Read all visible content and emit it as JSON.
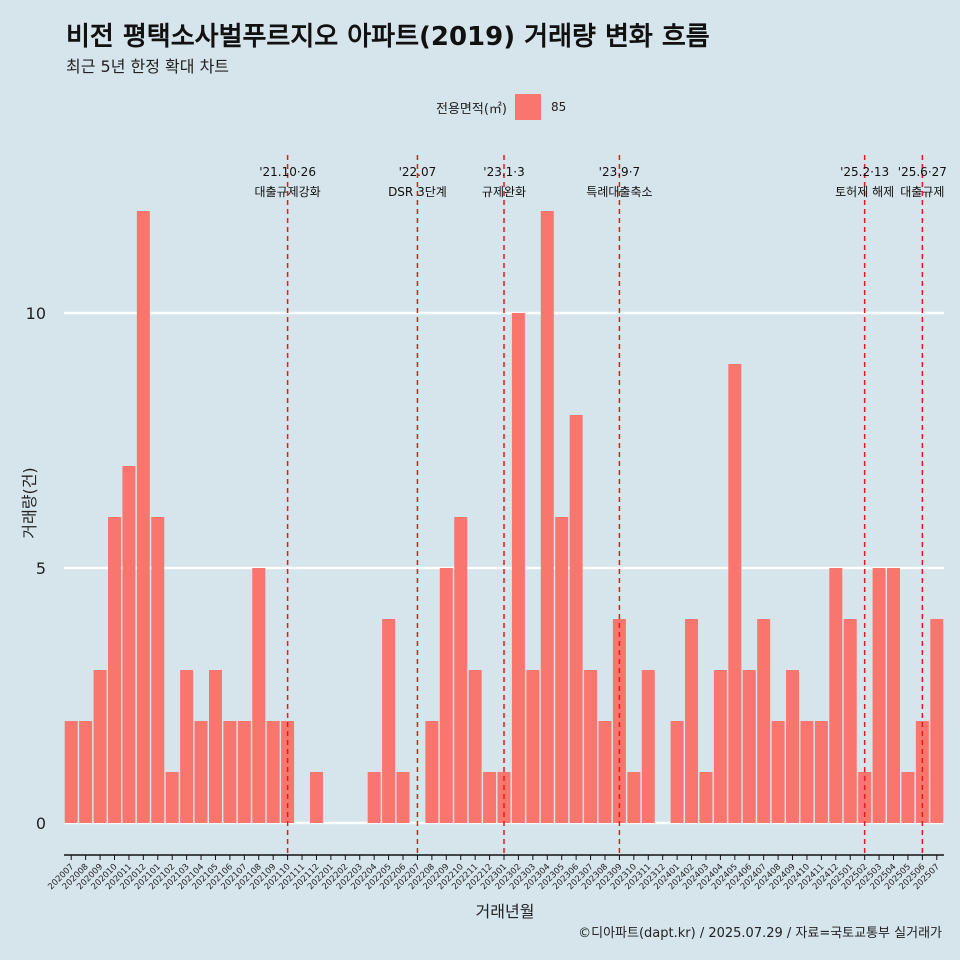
{
  "chart_data": {
    "type": "bar",
    "title": "비전 평택소사벌푸르지오 아파트(2019) 거래량 변화 흐름",
    "subtitle": "최근 5년 한정 확대 차트",
    "xlabel": "거래년월",
    "ylabel": "거래량(건)",
    "ylim": [
      0,
      12
    ],
    "yticks": [
      0,
      5,
      10
    ],
    "grid": true,
    "legend": {
      "title": "전용면적(㎡)",
      "position": "top"
    },
    "categories": [
      "202007",
      "202008",
      "202009",
      "202010",
      "202011",
      "202012",
      "202101",
      "202102",
      "202103",
      "202104",
      "202105",
      "202106",
      "202107",
      "202108",
      "202109",
      "202110",
      "202111",
      "202112",
      "202201",
      "202202",
      "202203",
      "202204",
      "202205",
      "202206",
      "202207",
      "202208",
      "202209",
      "202210",
      "202211",
      "202212",
      "202301",
      "202302",
      "202303",
      "202304",
      "202305",
      "202306",
      "202307",
      "202308",
      "202309",
      "202310",
      "202311",
      "202312",
      "202401",
      "202402",
      "202403",
      "202404",
      "202405",
      "202406",
      "202407",
      "202408",
      "202409",
      "202410",
      "202411",
      "202412",
      "202501",
      "202502",
      "202503",
      "202504",
      "202505",
      "202506",
      "202507"
    ],
    "series": [
      {
        "name": "85",
        "color": "#f8766d",
        "values": [
          2,
          2,
          3,
          6,
          7,
          12,
          6,
          1,
          3,
          2,
          3,
          2,
          2,
          5,
          2,
          2,
          0,
          1,
          0,
          0,
          0,
          1,
          4,
          1,
          0,
          2,
          5,
          6,
          3,
          1,
          1,
          10,
          3,
          12,
          6,
          8,
          3,
          2,
          4,
          1,
          3,
          0,
          2,
          4,
          1,
          3,
          9,
          3,
          4,
          2,
          3,
          2,
          2,
          5,
          4,
          1,
          5,
          5,
          1,
          2,
          4
        ]
      }
    ],
    "annotations": [
      {
        "x": "202110",
        "date": "'21.10·26",
        "label": "대출규제강화"
      },
      {
        "x": "202207",
        "date": "'22.07",
        "label": "DSR 3단계"
      },
      {
        "x": "202301",
        "date": "'23.1·3",
        "label": "규제완화"
      },
      {
        "x": "202309",
        "date": "'23.9·7",
        "label": "특례대출축소"
      },
      {
        "x": "202502",
        "date": "'25.2·13",
        "label": "토허제 해제"
      },
      {
        "x": "202506",
        "date": "'25.6·27",
        "label": "대출규제"
      }
    ]
  },
  "colors": {
    "background": "#d6e4ec",
    "bar": "#f8766d",
    "annotation_line": "#e31a1c",
    "grid": "#ffffff"
  },
  "caption": "©디아파트(dapt.kr) / 2025.07.29 / 자료=국토교통부 실거래가"
}
